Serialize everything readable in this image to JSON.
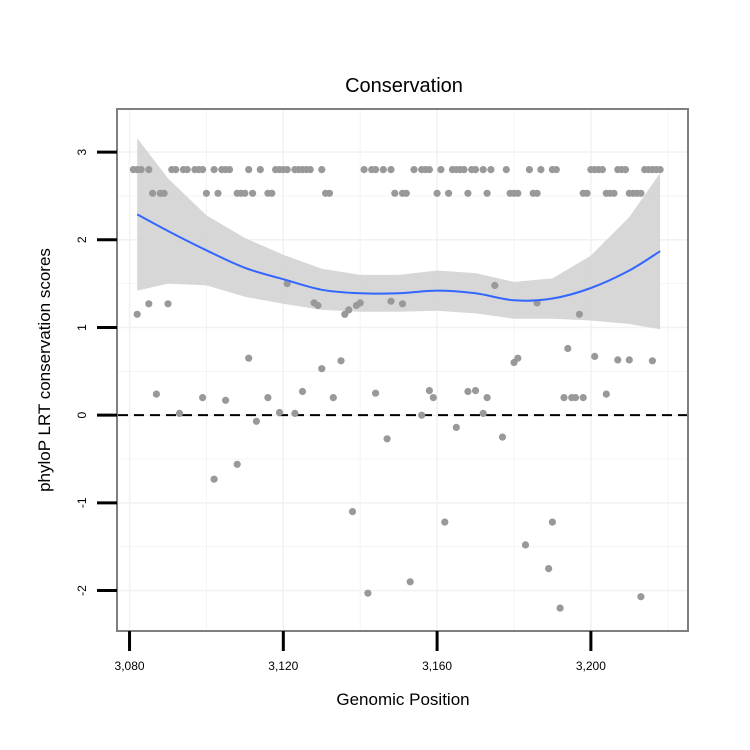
{
  "chart_data": {
    "type": "scatter",
    "title": "Conservation",
    "xlabel": "Genomic Position",
    "ylabel": "phyloP LRT conservation scores",
    "xlim": [
      3077,
      3225
    ],
    "ylim": [
      -2.45,
      3.48
    ],
    "xticks": [
      3080,
      3120,
      3160,
      3200
    ],
    "xtick_labels": [
      "3,080",
      "3,120",
      "3,160",
      "3,200"
    ],
    "yticks": [
      3,
      2,
      1,
      0,
      -1,
      -2
    ],
    "ytick_labels": [
      "3",
      "2",
      "1",
      "0",
      "-1",
      "-2"
    ],
    "reference_line_y": 0,
    "grid": true,
    "colors": {
      "points": "#999999",
      "smooth": "#3366ff",
      "band": "#d3d3d3",
      "frame": "#7f7f7f",
      "grid": "#f2f2f2"
    },
    "points": [
      [
        3081,
        2.8
      ],
      [
        3082,
        2.8
      ],
      [
        3083,
        2.8
      ],
      [
        3085,
        2.8
      ],
      [
        3086,
        2.53
      ],
      [
        3088,
        2.53
      ],
      [
        3089,
        2.53
      ],
      [
        3091,
        2.8
      ],
      [
        3092,
        2.8
      ],
      [
        3094,
        2.8
      ],
      [
        3095,
        2.8
      ],
      [
        3097,
        2.8
      ],
      [
        3098,
        2.8
      ],
      [
        3099,
        2.8
      ],
      [
        3100,
        2.53
      ],
      [
        3102,
        2.8
      ],
      [
        3103,
        2.53
      ],
      [
        3104,
        2.8
      ],
      [
        3105,
        2.8
      ],
      [
        3106,
        2.8
      ],
      [
        3108,
        2.53
      ],
      [
        3109,
        2.53
      ],
      [
        3110,
        2.53
      ],
      [
        3111,
        2.8
      ],
      [
        3112,
        2.53
      ],
      [
        3114,
        2.8
      ],
      [
        3116,
        2.53
      ],
      [
        3117,
        2.53
      ],
      [
        3118,
        2.8
      ],
      [
        3119,
        2.8
      ],
      [
        3120,
        2.8
      ],
      [
        3121,
        2.8
      ],
      [
        3123,
        2.8
      ],
      [
        3124,
        2.8
      ],
      [
        3125,
        2.8
      ],
      [
        3126,
        2.8
      ],
      [
        3127,
        2.8
      ],
      [
        3130,
        2.8
      ],
      [
        3131,
        2.53
      ],
      [
        3132,
        2.53
      ],
      [
        3141,
        2.8
      ],
      [
        3143,
        2.8
      ],
      [
        3144,
        2.8
      ],
      [
        3146,
        2.8
      ],
      [
        3148,
        2.8
      ],
      [
        3149,
        2.53
      ],
      [
        3151,
        2.53
      ],
      [
        3152,
        2.53
      ],
      [
        3154,
        2.8
      ],
      [
        3156,
        2.8
      ],
      [
        3157,
        2.8
      ],
      [
        3158,
        2.8
      ],
      [
        3160,
        2.53
      ],
      [
        3161,
        2.8
      ],
      [
        3163,
        2.53
      ],
      [
        3164,
        2.8
      ],
      [
        3165,
        2.8
      ],
      [
        3166,
        2.8
      ],
      [
        3167,
        2.8
      ],
      [
        3168,
        2.53
      ],
      [
        3169,
        2.8
      ],
      [
        3170,
        2.8
      ],
      [
        3172,
        2.8
      ],
      [
        3173,
        2.53
      ],
      [
        3174,
        2.8
      ],
      [
        3178,
        2.8
      ],
      [
        3179,
        2.53
      ],
      [
        3180,
        2.53
      ],
      [
        3181,
        2.53
      ],
      [
        3184,
        2.8
      ],
      [
        3185,
        2.53
      ],
      [
        3186,
        2.53
      ],
      [
        3187,
        2.8
      ],
      [
        3190,
        2.8
      ],
      [
        3191,
        2.8
      ],
      [
        3198,
        2.53
      ],
      [
        3199,
        2.53
      ],
      [
        3200,
        2.8
      ],
      [
        3201,
        2.8
      ],
      [
        3202,
        2.8
      ],
      [
        3203,
        2.8
      ],
      [
        3204,
        2.53
      ],
      [
        3205,
        2.53
      ],
      [
        3206,
        2.53
      ],
      [
        3207,
        2.8
      ],
      [
        3208,
        2.8
      ],
      [
        3209,
        2.8
      ],
      [
        3210,
        2.53
      ],
      [
        3211,
        2.53
      ],
      [
        3212,
        2.53
      ],
      [
        3213,
        2.53
      ],
      [
        3214,
        2.8
      ],
      [
        3215,
        2.8
      ],
      [
        3216,
        2.8
      ],
      [
        3217,
        2.8
      ],
      [
        3218,
        2.8
      ],
      [
        3082,
        1.15
      ],
      [
        3085,
        1.27
      ],
      [
        3087,
        0.24
      ],
      [
        3090,
        1.27
      ],
      [
        3093,
        0.02
      ],
      [
        3099,
        0.2
      ],
      [
        3102,
        -0.73
      ],
      [
        3105,
        0.17
      ],
      [
        3108,
        -0.56
      ],
      [
        3111,
        0.65
      ],
      [
        3113,
        -0.07
      ],
      [
        3116,
        0.2
      ],
      [
        3119,
        0.03
      ],
      [
        3121,
        1.5
      ],
      [
        3123,
        0.02
      ],
      [
        3125,
        0.27
      ],
      [
        3128,
        1.28
      ],
      [
        3129,
        1.25
      ],
      [
        3130,
        0.53
      ],
      [
        3133,
        0.2
      ],
      [
        3135,
        0.62
      ],
      [
        3136,
        1.15
      ],
      [
        3137,
        1.2
      ],
      [
        3138,
        -1.1
      ],
      [
        3139,
        1.25
      ],
      [
        3140,
        1.28
      ],
      [
        3142,
        -2.03
      ],
      [
        3144,
        0.25
      ],
      [
        3147,
        -0.27
      ],
      [
        3148,
        1.3
      ],
      [
        3151,
        1.27
      ],
      [
        3153,
        -1.9
      ],
      [
        3156,
        0.0
      ],
      [
        3158,
        0.28
      ],
      [
        3159,
        0.2
      ],
      [
        3162,
        -1.22
      ],
      [
        3165,
        -0.14
      ],
      [
        3168,
        0.27
      ],
      [
        3170,
        0.28
      ],
      [
        3172,
        0.02
      ],
      [
        3173,
        0.2
      ],
      [
        3175,
        1.48
      ],
      [
        3177,
        -0.25
      ],
      [
        3180,
        0.6
      ],
      [
        3181,
        0.65
      ],
      [
        3183,
        -1.48
      ],
      [
        3186,
        1.28
      ],
      [
        3189,
        -1.75
      ],
      [
        3190,
        -1.22
      ],
      [
        3192,
        -2.2
      ],
      [
        3193,
        0.2
      ],
      [
        3194,
        0.76
      ],
      [
        3195,
        0.2
      ],
      [
        3196,
        0.2
      ],
      [
        3197,
        1.15
      ],
      [
        3198,
        0.2
      ],
      [
        3201,
        0.67
      ],
      [
        3204,
        0.24
      ],
      [
        3207,
        0.63
      ],
      [
        3210,
        0.63
      ],
      [
        3213,
        -2.07
      ],
      [
        3216,
        0.62
      ]
    ],
    "smooth_line": [
      [
        3082,
        2.29
      ],
      [
        3090,
        2.1
      ],
      [
        3100,
        1.88
      ],
      [
        3110,
        1.68
      ],
      [
        3120,
        1.55
      ],
      [
        3130,
        1.43
      ],
      [
        3140,
        1.39
      ],
      [
        3150,
        1.39
      ],
      [
        3160,
        1.42
      ],
      [
        3170,
        1.39
      ],
      [
        3180,
        1.31
      ],
      [
        3190,
        1.33
      ],
      [
        3200,
        1.45
      ],
      [
        3210,
        1.65
      ],
      [
        3218,
        1.87
      ]
    ],
    "band_upper": [
      [
        3082,
        3.16
      ],
      [
        3090,
        2.7
      ],
      [
        3100,
        2.28
      ],
      [
        3110,
        2.02
      ],
      [
        3120,
        1.83
      ],
      [
        3130,
        1.67
      ],
      [
        3140,
        1.6
      ],
      [
        3150,
        1.6
      ],
      [
        3160,
        1.65
      ],
      [
        3170,
        1.62
      ],
      [
        3180,
        1.52
      ],
      [
        3190,
        1.56
      ],
      [
        3200,
        1.82
      ],
      [
        3210,
        2.26
      ],
      [
        3218,
        2.76
      ]
    ],
    "band_lower": [
      [
        3082,
        1.42
      ],
      [
        3090,
        1.5
      ],
      [
        3100,
        1.48
      ],
      [
        3110,
        1.35
      ],
      [
        3120,
        1.27
      ],
      [
        3130,
        1.2
      ],
      [
        3140,
        1.18
      ],
      [
        3150,
        1.18
      ],
      [
        3160,
        1.19
      ],
      [
        3170,
        1.16
      ],
      [
        3180,
        1.1
      ],
      [
        3190,
        1.1
      ],
      [
        3200,
        1.08
      ],
      [
        3210,
        1.04
      ],
      [
        3218,
        0.98
      ]
    ]
  }
}
